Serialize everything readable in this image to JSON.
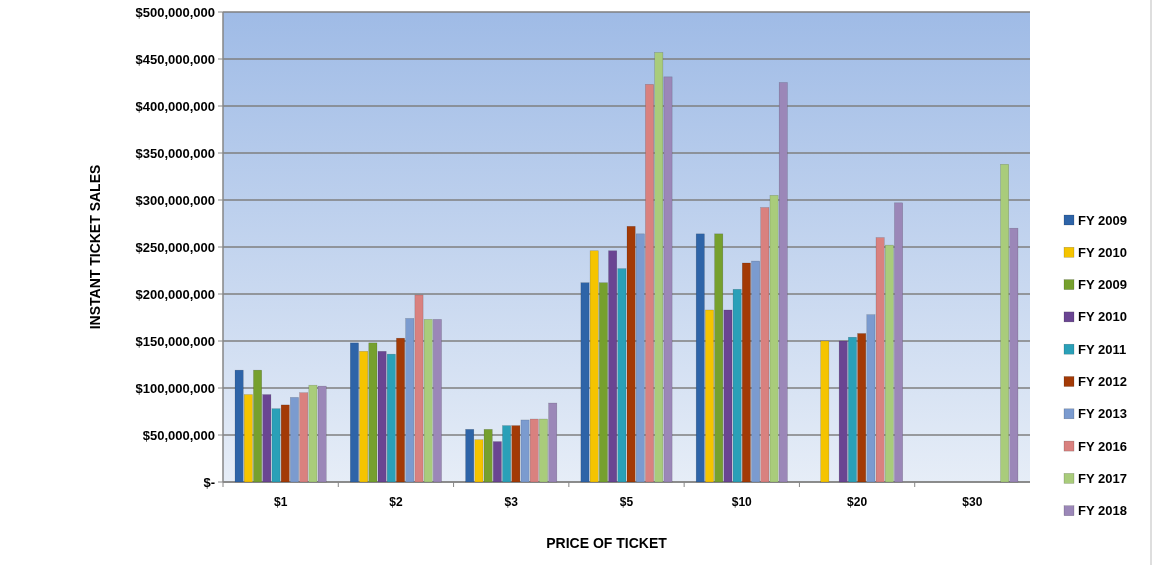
{
  "chart_data": {
    "type": "bar",
    "xlabel": "PRICE OF TICKET",
    "ylabel": "INSTANT TICKET SALES",
    "categories": [
      "$1",
      "$2",
      "$3",
      "$5",
      "$10",
      "$20",
      "$30"
    ],
    "series": [
      {
        "name": "FY 2009",
        "color": "#2e64a8",
        "values": [
          119000000,
          148000000,
          56000000,
          212000000,
          264000000,
          null,
          null
        ]
      },
      {
        "name": "FY 2010",
        "color": "#f5c400",
        "values": [
          93000000,
          139000000,
          45000000,
          246000000,
          183000000,
          150000000,
          null
        ]
      },
      {
        "name": "FY 2009",
        "color": "#76a02e",
        "values": [
          119000000,
          148000000,
          56000000,
          212000000,
          264000000,
          null,
          null
        ]
      },
      {
        "name": "FY 2010",
        "color": "#6a4592",
        "values": [
          93000000,
          139000000,
          43000000,
          246000000,
          183000000,
          150000000,
          null
        ]
      },
      {
        "name": "FY 2011",
        "color": "#2aa0b8",
        "values": [
          78000000,
          136000000,
          60000000,
          227000000,
          205000000,
          154000000,
          null
        ]
      },
      {
        "name": "FY 2012",
        "color": "#a33a06",
        "values": [
          82000000,
          153000000,
          60000000,
          272000000,
          233000000,
          158000000,
          null
        ]
      },
      {
        "name": "FY 2013",
        "color": "#7b9bcf",
        "values": [
          90000000,
          174000000,
          66000000,
          264000000,
          235000000,
          178000000,
          null
        ]
      },
      {
        "name": "FY 2016",
        "color": "#d9817f",
        "values": [
          95000000,
          199000000,
          67000000,
          423000000,
          292000000,
          260000000,
          null
        ]
      },
      {
        "name": "FY 2017",
        "color": "#a9cc7b",
        "values": [
          103000000,
          173000000,
          67000000,
          457000000,
          305000000,
          252000000,
          338000000
        ]
      },
      {
        "name": "FY 2018",
        "color": "#9b87b8",
        "values": [
          102000000,
          173000000,
          84000000,
          431000000,
          425000000,
          297000000,
          270000000
        ]
      }
    ],
    "ylim": [
      0,
      500000000
    ],
    "yticks": [
      {
        "value": 0,
        "label": "$-"
      },
      {
        "value": 50000000,
        "label": "$50,000,000"
      },
      {
        "value": 100000000,
        "label": "$100,000,000"
      },
      {
        "value": 150000000,
        "label": "$150,000,000"
      },
      {
        "value": 200000000,
        "label": "$200,000,000"
      },
      {
        "value": 250000000,
        "label": "$250,000,000"
      },
      {
        "value": 300000000,
        "label": "$300,000,000"
      },
      {
        "value": 350000000,
        "label": "$350,000,000"
      },
      {
        "value": 400000000,
        "label": "$400,000,000"
      },
      {
        "value": 450000000,
        "label": "$450,000,000"
      },
      {
        "value": 500000000,
        "label": "$500,000,000"
      }
    ],
    "grid": "y",
    "legend": "right"
  }
}
